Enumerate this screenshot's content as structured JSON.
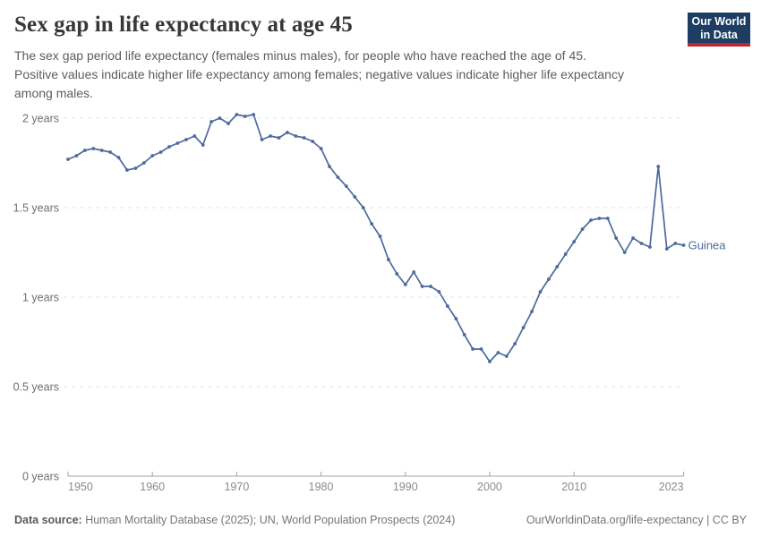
{
  "header": {
    "title": "Sex gap in life expectancy at age 45",
    "subtitle_lines": [
      "The sex gap period life expectancy (females minus males), for people who have reached the age of 45.",
      "Positive values indicate higher life expectancy among females; negative values indicate higher life expectancy",
      "among males."
    ],
    "logo": {
      "line1": "Our World",
      "line2": "in Data"
    }
  },
  "chart_data": {
    "type": "line",
    "title": "Sex gap in life expectancy at age 45",
    "xlabel": "",
    "ylabel": "",
    "ylim": [
      0,
      2.1
    ],
    "xlim": [
      1950,
      2023
    ],
    "grid": "horizontal-dashed",
    "legend_position": "end-of-line-label",
    "line_color": "#4c6a9c",
    "x_ticks": [
      1950,
      1960,
      1970,
      1980,
      1990,
      2000,
      2010,
      2023
    ],
    "y_ticks": [
      {
        "value": 0,
        "label": "0 years"
      },
      {
        "value": 0.5,
        "label": "0.5 years"
      },
      {
        "value": 1,
        "label": "1 years"
      },
      {
        "value": 1.5,
        "label": "1.5 years"
      },
      {
        "value": 2,
        "label": "2 years"
      }
    ],
    "series": [
      {
        "name": "Guinea",
        "x": [
          1950,
          1951,
          1952,
          1953,
          1954,
          1955,
          1956,
          1957,
          1958,
          1959,
          1960,
          1961,
          1962,
          1963,
          1964,
          1965,
          1966,
          1967,
          1968,
          1969,
          1970,
          1971,
          1972,
          1973,
          1974,
          1975,
          1976,
          1977,
          1978,
          1979,
          1980,
          1981,
          1982,
          1983,
          1984,
          1985,
          1986,
          1987,
          1988,
          1989,
          1990,
          1991,
          1992,
          1993,
          1994,
          1995,
          1996,
          1997,
          1998,
          1999,
          2000,
          2001,
          2002,
          2003,
          2004,
          2005,
          2006,
          2007,
          2008,
          2009,
          2010,
          2011,
          2012,
          2013,
          2014,
          2015,
          2016,
          2017,
          2018,
          2019,
          2020,
          2021,
          2022,
          2023
        ],
        "values": [
          1.77,
          1.79,
          1.82,
          1.83,
          1.82,
          1.81,
          1.78,
          1.71,
          1.72,
          1.75,
          1.79,
          1.81,
          1.84,
          1.86,
          1.88,
          1.9,
          1.85,
          1.98,
          2.0,
          1.97,
          2.02,
          2.01,
          2.02,
          1.88,
          1.9,
          1.89,
          1.92,
          1.9,
          1.89,
          1.87,
          1.83,
          1.73,
          1.67,
          1.62,
          1.56,
          1.5,
          1.41,
          1.34,
          1.21,
          1.13,
          1.07,
          1.14,
          1.06,
          1.06,
          1.03,
          0.95,
          0.88,
          0.79,
          0.71,
          0.71,
          0.64,
          0.69,
          0.67,
          0.74,
          0.83,
          0.92,
          1.03,
          1.1,
          1.17,
          1.24,
          1.31,
          1.38,
          1.43,
          1.44,
          1.44,
          1.33,
          1.25,
          1.33,
          1.3,
          1.28,
          1.73,
          1.27,
          1.3,
          1.29
        ]
      }
    ]
  },
  "footer": {
    "source_label": "Data source:",
    "source_text": " Human Mortality Database (2025); UN, World Population Prospects (2024)",
    "link": "OurWorldinData.org/life-expectancy",
    "license": " | CC BY"
  }
}
